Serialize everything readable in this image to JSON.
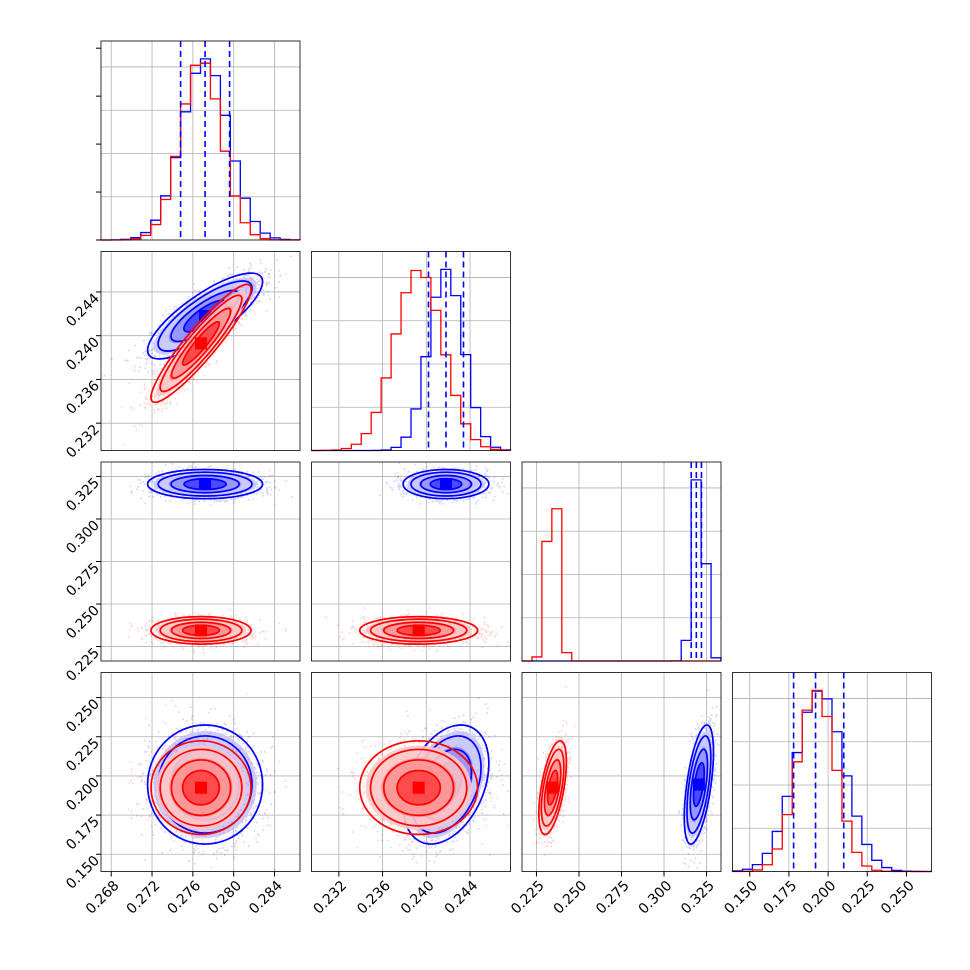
{
  "chart_data": {
    "type": "corner",
    "grid": true,
    "colors": {
      "series_a": "#0000ff",
      "series_b": "#ff0000",
      "background": "#ffffff"
    },
    "parameters": [
      {
        "range": [
          0.267,
          0.2865
        ],
        "ticks": [
          0.268,
          0.272,
          0.276,
          0.28,
          0.284
        ],
        "tick_labels": [
          "0.268",
          "0.272",
          "0.276",
          "0.280",
          "0.284"
        ]
      },
      {
        "range": [
          0.2295,
          0.2477
        ],
        "ticks": [
          0.232,
          0.236,
          0.24,
          0.244
        ],
        "tick_labels": [
          "0.232",
          "0.236",
          "0.240",
          "0.244"
        ]
      },
      {
        "range": [
          0.2165,
          0.3335
        ],
        "ticks": [
          0.225,
          0.25,
          0.275,
          0.3,
          0.325
        ],
        "tick_labels": [
          "0.225",
          "0.250",
          "0.275",
          "0.300",
          "0.325"
        ]
      },
      {
        "range": [
          0.139,
          0.266
        ],
        "ticks": [
          0.15,
          0.175,
          0.2,
          0.225,
          0.25
        ],
        "tick_labels": [
          "0.150",
          "0.175",
          "0.200",
          "0.225",
          "0.250"
        ]
      }
    ],
    "series": [
      {
        "color": "#0000ff",
        "means": [
          0.2772,
          0.2418,
          0.3205,
          0.1945
        ],
        "sigmas": [
          0.0023,
          0.0016,
          0.0035,
          0.0155
        ],
        "correlations": {
          "0-1": 0.8,
          "0-2": 0.0,
          "0-3": 0.0,
          "1-2": 0.0,
          "1-3": 0.35,
          "2-3": 0.55
        },
        "quantiles": [
          [
            0.2748,
            0.2772,
            0.2796
          ],
          [
            0.2402,
            0.2418,
            0.2434
          ],
          [
            0.316,
            0.319,
            0.322
          ],
          [
            0.178,
            0.192,
            0.21
          ]
        ]
      },
      {
        "color": "#ff0000",
        "means": [
          0.2768,
          0.2393,
          0.2345,
          0.1925
        ],
        "sigmas": [
          0.002,
          0.0022,
          0.0033,
          0.0122
        ],
        "correlations": {
          "0-1": 0.92,
          "0-2": 0.0,
          "0-3": 0.0,
          "1-2": 0.0,
          "1-3": 0.0,
          "2-3": 0.55
        },
        "quantiles": []
      }
    ]
  }
}
